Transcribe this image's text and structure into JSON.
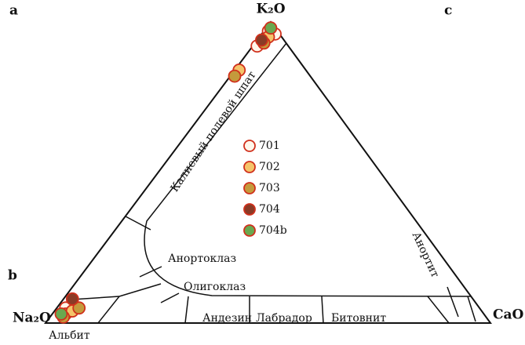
{
  "chart_data": {
    "type": "ternary",
    "panel_labels": [
      "a",
      "b",
      "c"
    ],
    "vertices": [
      "K₂O",
      "Na₂O",
      "CaO"
    ],
    "fields": [
      "Калиевый полевой шпат",
      "Анортоклаз",
      "Олигоклаз",
      "Андезин",
      "Лабрадор",
      "Битовнит",
      "Альбит",
      "Анортит"
    ],
    "series": [
      {
        "name": "701",
        "color": "#fff6ea",
        "values": [
          [
            97,
            2,
            1
          ],
          [
            96,
            1,
            3
          ],
          [
            92,
            7,
            1
          ],
          [
            5,
            93,
            2
          ],
          [
            3,
            94,
            3
          ]
        ]
      },
      {
        "name": "702",
        "color": "#f5c46a",
        "values": [
          [
            95,
            3,
            2
          ],
          [
            84,
            15,
            1
          ],
          [
            4,
            92,
            4
          ]
        ]
      },
      {
        "name": "703",
        "color": "#c49a3c",
        "values": [
          [
            93,
            5,
            2
          ],
          [
            82,
            17,
            1
          ],
          [
            5,
            90,
            5
          ],
          [
            2,
            95,
            3
          ]
        ]
      },
      {
        "name": "704",
        "color": "#8a3b26",
        "values": [
          [
            94,
            5,
            1
          ],
          [
            8,
            90,
            2
          ]
        ]
      },
      {
        "name": "704b",
        "color": "#6aa84f",
        "values": [
          [
            98,
            1,
            1
          ],
          [
            3,
            95,
            2
          ]
        ]
      }
    ]
  }
}
